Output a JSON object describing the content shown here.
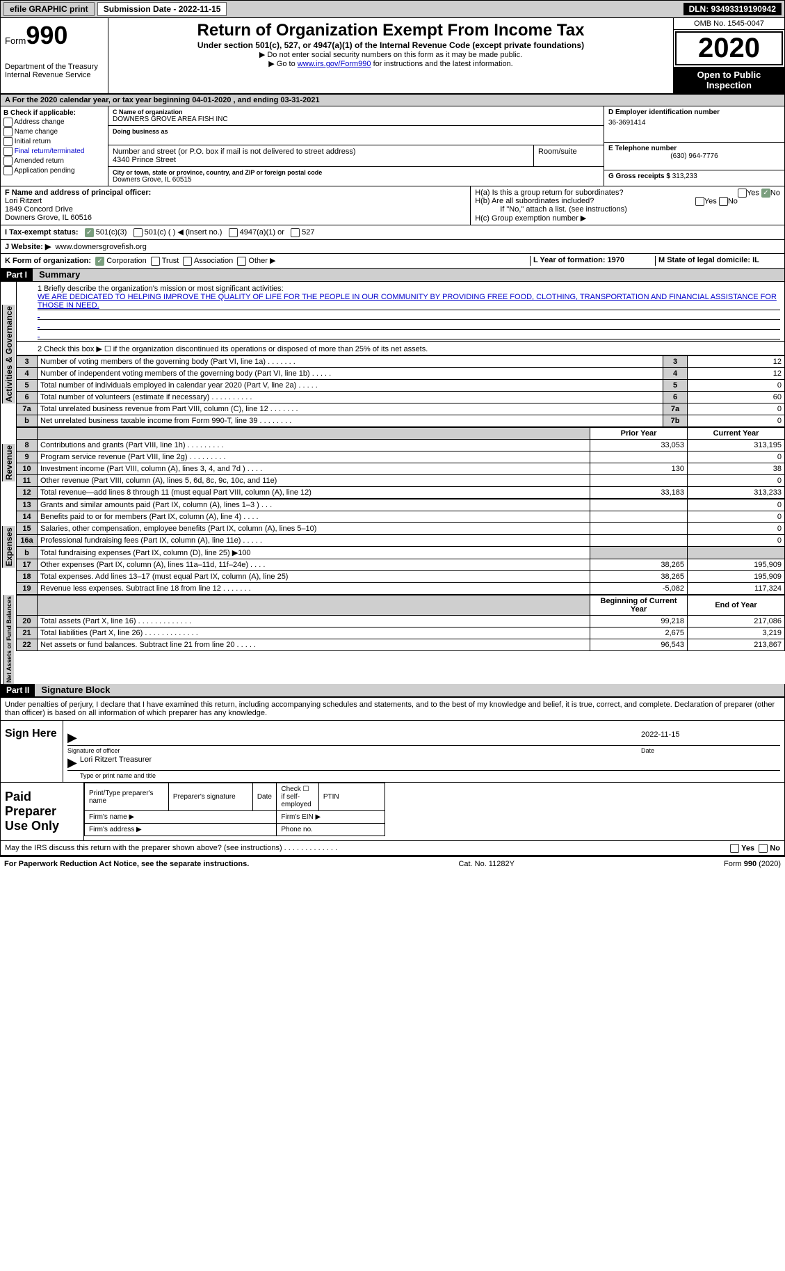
{
  "topbar": {
    "efile": "efile GRAPHIC print",
    "submission": "Submission Date - 2022-11-15",
    "dln": "DLN: 93493319190942"
  },
  "header": {
    "form_label": "Form",
    "form_num": "990",
    "dept": "Department of the Treasury\nInternal Revenue Service",
    "title": "Return of Organization Exempt From Income Tax",
    "subtitle": "Under section 501(c), 527, or 4947(a)(1) of the Internal Revenue Code (except private foundations)",
    "note1": "▶ Do not enter social security numbers on this form as it may be made public.",
    "note2_pre": "▶ Go to ",
    "note2_link": "www.irs.gov/Form990",
    "note2_post": " for instructions and the latest information.",
    "omb": "OMB No. 1545-0047",
    "year": "2020",
    "open": "Open to Public Inspection"
  },
  "line_a": "A For the 2020 calendar year, or tax year beginning 04-01-2020    , and ending 03-31-2021",
  "col_b": {
    "header": "B Check if applicable:",
    "items": [
      "Address change",
      "Name change",
      "Initial return",
      "Final return/terminated",
      "Amended return",
      "Application pending"
    ]
  },
  "col_c": {
    "name_label": "C Name of organization",
    "name": "DOWNERS GROVE AREA FISH INC",
    "dba_label": "Doing business as",
    "dba": "",
    "addr_label": "Number and street (or P.O. box if mail is not delivered to street address)",
    "room_label": "Room/suite",
    "addr": "4340 Prince Street",
    "city_label": "City or town, state or province, country, and ZIP or foreign postal code",
    "city": "Downers Grove, IL  60515"
  },
  "col_d": {
    "ein_label": "D Employer identification number",
    "ein": "36-3691414",
    "tel_label": "E Telephone number",
    "tel": "(630) 964-7776",
    "gross_label": "G Gross receipts $",
    "gross": "313,233"
  },
  "row_f": {
    "label": "F  Name and address of principal officer:",
    "name": "Lori Ritzert",
    "addr1": "1849 Concord Drive",
    "addr2": "Downers Grove, IL  60516"
  },
  "row_h": {
    "ha": "H(a)  Is this a group return for subordinates?",
    "hb": "H(b)  Are all subordinates included?",
    "hb_note": "If \"No,\" attach a list. (see instructions)",
    "hc": "H(c)  Group exemption number ▶",
    "yes": "Yes",
    "no": "No"
  },
  "row_i": {
    "label": "I   Tax-exempt status:",
    "opts": [
      "501(c)(3)",
      "501(c) (   ) ◀ (insert no.)",
      "4947(a)(1) or",
      "527"
    ]
  },
  "row_j": {
    "label": "J   Website: ▶",
    "value": "www.downersgrovefish.org"
  },
  "row_k": {
    "label": "K Form of organization:",
    "opts": [
      "Corporation",
      "Trust",
      "Association",
      "Other ▶"
    ],
    "l": "L Year of formation: 1970",
    "m": "M State of legal domicile: IL"
  },
  "part1": {
    "hdr": "Part I",
    "title": "Summary",
    "q1": "1  Briefly describe the organization's mission or most significant activities:",
    "mission": "WE ARE DEDICATED TO HELPING IMPROVE THE QUALITY OF LIFE FOR THE PEOPLE IN OUR COMMUNITY BY PROVIDING FREE FOOD, CLOTHING, TRANSPORTATION AND FINANCIAL ASSISTANCE FOR THOSE IN NEED.",
    "q2": "2  Check this box ▶ ☐  if the organization discontinued its operations or disposed of more than 25% of its net assets.",
    "rows": [
      {
        "n": "3",
        "desc": "Number of voting members of the governing body (Part VI, line 1a)   .    .    .    .    .    .    .",
        "lbl": "3",
        "v": "12"
      },
      {
        "n": "4",
        "desc": "Number of independent voting members of the governing body (Part VI, line 1b)   .    .    .    .    .",
        "lbl": "4",
        "v": "12"
      },
      {
        "n": "5",
        "desc": "Total number of individuals employed in calendar year 2020 (Part V, line 2a)   .    .    .    .    .",
        "lbl": "5",
        "v": "0"
      },
      {
        "n": "6",
        "desc": "Total number of volunteers (estimate if necessary)   .    .    .    .    .    .    .    .    .    .",
        "lbl": "6",
        "v": "60"
      },
      {
        "n": "7a",
        "desc": "Total unrelated business revenue from Part VIII, column (C), line 12   .    .    .    .    .    .    .",
        "lbl": "7a",
        "v": "0"
      },
      {
        "n": "b",
        "desc": "Net unrelated business taxable income from Form 990-T, line 39   .    .    .    .    .    .    .    .",
        "lbl": "7b",
        "v": "0"
      }
    ],
    "vlabel1": "Activities & Governance"
  },
  "revenue": {
    "vlabel": "Revenue",
    "hdr_prior": "Prior Year",
    "hdr_curr": "Current Year",
    "rows": [
      {
        "n": "8",
        "desc": "Contributions and grants (Part VIII, line 1h)   .    .    .    .    .    .    .    .    .",
        "p": "33,053",
        "c": "313,195"
      },
      {
        "n": "9",
        "desc": "Program service revenue (Part VIII, line 2g)   .    .    .    .    .    .    .    .    .",
        "p": "",
        "c": "0"
      },
      {
        "n": "10",
        "desc": "Investment income (Part VIII, column (A), lines 3, 4, and 7d )   .    .    .    .",
        "p": "130",
        "c": "38"
      },
      {
        "n": "11",
        "desc": "Other revenue (Part VIII, column (A), lines 5, 6d, 8c, 9c, 10c, and 11e)",
        "p": "",
        "c": "0"
      },
      {
        "n": "12",
        "desc": "Total revenue—add lines 8 through 11 (must equal Part VIII, column (A), line 12)",
        "p": "33,183",
        "c": "313,233"
      }
    ]
  },
  "expenses": {
    "vlabel": "Expenses",
    "rows": [
      {
        "n": "13",
        "desc": "Grants and similar amounts paid (Part IX, column (A), lines 1–3 )   .    .    .",
        "p": "",
        "c": "0"
      },
      {
        "n": "14",
        "desc": "Benefits paid to or for members (Part IX, column (A), line 4)   .    .    .    .",
        "p": "",
        "c": "0"
      },
      {
        "n": "15",
        "desc": "Salaries, other compensation, employee benefits (Part IX, column (A), lines 5–10)",
        "p": "",
        "c": "0"
      },
      {
        "n": "16a",
        "desc": "Professional fundraising fees (Part IX, column (A), line 11e)   .    .    .    .    .",
        "p": "",
        "c": "0"
      },
      {
        "n": "b",
        "desc": "Total fundraising expenses (Part IX, column (D), line 25) ▶100",
        "p": "shade",
        "c": "shade"
      },
      {
        "n": "17",
        "desc": "Other expenses (Part IX, column (A), lines 11a–11d, 11f–24e)   .    .    .    .",
        "p": "38,265",
        "c": "195,909"
      },
      {
        "n": "18",
        "desc": "Total expenses. Add lines 13–17 (must equal Part IX, column (A), line 25)",
        "p": "38,265",
        "c": "195,909"
      },
      {
        "n": "19",
        "desc": "Revenue less expenses. Subtract line 18 from line 12   .    .    .    .    .    .    .",
        "p": "-5,082",
        "c": "117,324"
      }
    ]
  },
  "netassets": {
    "vlabel": "Net Assets or Fund Balances",
    "hdr_begin": "Beginning of Current Year",
    "hdr_end": "End of Year",
    "rows": [
      {
        "n": "20",
        "desc": "Total assets (Part X, line 16)   .    .    .    .    .    .    .    .    .    .    .    .    .",
        "p": "99,218",
        "c": "217,086"
      },
      {
        "n": "21",
        "desc": "Total liabilities (Part X, line 26)   .    .    .    .    .    .    .    .    .    .    .    .    .",
        "p": "2,675",
        "c": "3,219"
      },
      {
        "n": "22",
        "desc": "Net assets or fund balances. Subtract line 21 from line 20   .    .    .    .    .",
        "p": "96,543",
        "c": "213,867"
      }
    ]
  },
  "part2": {
    "hdr": "Part II",
    "title": "Signature Block",
    "declare": "Under penalties of perjury, I declare that I have examined this return, including accompanying schedules and statements, and to the best of my knowledge and belief, it is true, correct, and complete. Declaration of preparer (other than officer) is based on all information of which preparer has any knowledge.",
    "sign_here": "Sign Here",
    "sig_officer": "Signature of officer",
    "date_label": "Date",
    "sig_date": "2022-11-15",
    "name_title": "Lori Ritzert  Treasurer",
    "type_label": "Type or print name and title",
    "paid_prep": "Paid Preparer Use Only",
    "pt_name": "Print/Type preparer's name",
    "pt_sig": "Preparer's signature",
    "pt_date": "Date",
    "pt_check": "Check ☐ if self-employed",
    "pt_ptin": "PTIN",
    "firm_name": "Firm's name   ▶",
    "firm_ein": "Firm's EIN ▶",
    "firm_addr": "Firm's address ▶",
    "phone": "Phone no."
  },
  "footer": {
    "discuss": "May the IRS discuss this return with the preparer shown above? (see instructions)   .    .    .    .    .    .    .    .    .    .    .    .    .",
    "yes": "Yes",
    "no": "No",
    "paperwork": "For Paperwork Reduction Act Notice, see the separate instructions.",
    "cat": "Cat. No. 11282Y",
    "form": "Form 990 (2020)"
  },
  "colors": {
    "shade": "#cfcfcf",
    "link": "#0000cc",
    "green": "#7a9e7e",
    "black": "#000000"
  }
}
